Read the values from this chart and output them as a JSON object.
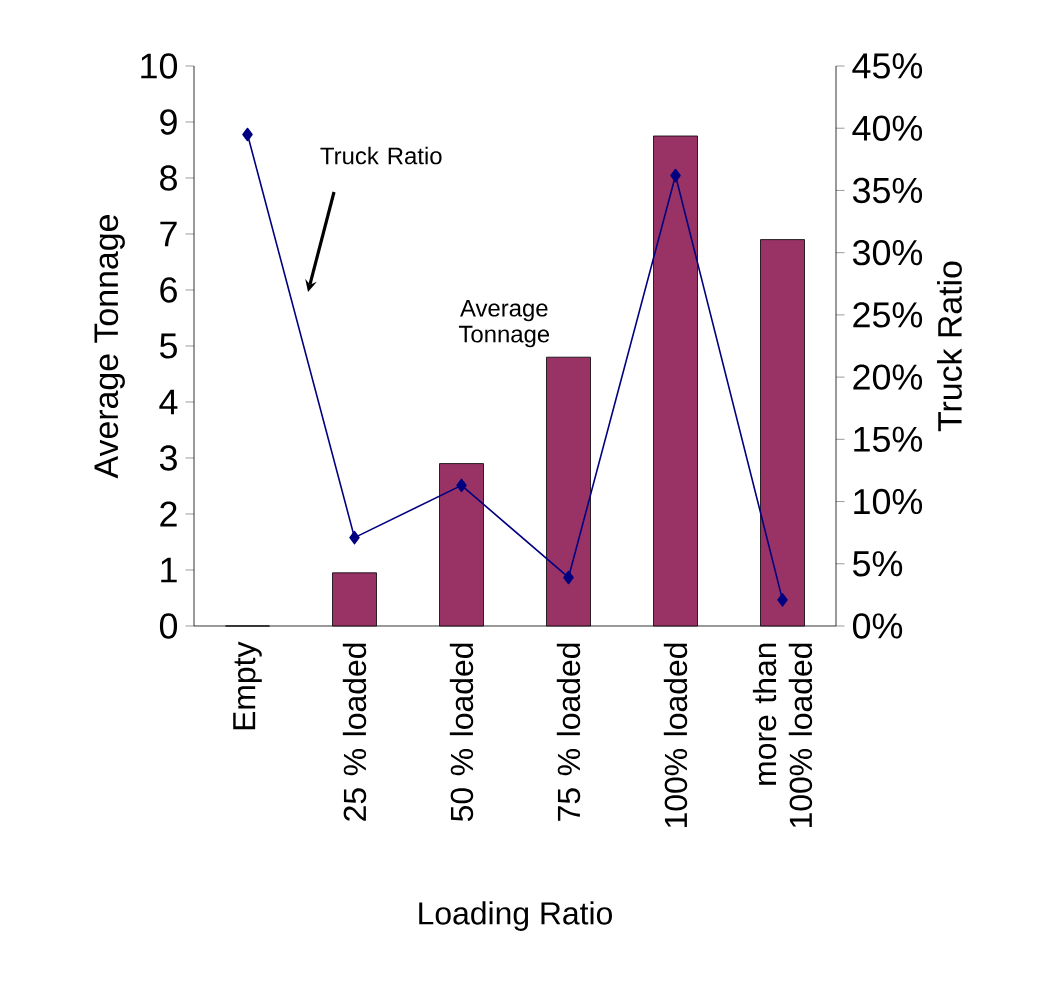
{
  "chart_data": {
    "type": "bar",
    "xlabel": "Loading Ratio",
    "ylabel": "Average Tonnage",
    "y2label": "Truck Ratio",
    "categories": [
      "Empty",
      "25 % loaded",
      "50 % loaded",
      "75 % loaded",
      "100% loaded",
      "more than 100% loaded"
    ],
    "series": [
      {
        "name": "Average Tonnage",
        "color": "#993366",
        "values": [
          0,
          0.95,
          2.9,
          4.8,
          8.75,
          6.9
        ]
      },
      {
        "name": "Truck Ratio",
        "type": "line",
        "axis": "y2",
        "color": "#000080",
        "marker": "diamond",
        "values": [
          39.5,
          7.1,
          11.3,
          3.9,
          36.2,
          2.1
        ]
      }
    ],
    "ylim": [
      0,
      10
    ],
    "yticks": [
      0,
      1,
      2,
      3,
      4,
      5,
      6,
      7,
      8,
      9,
      10
    ],
    "y2lim": [
      0,
      45
    ],
    "y2ticks": [
      {
        "value": 0,
        "label": "0%"
      },
      {
        "value": 5,
        "label": "5%"
      },
      {
        "value": 10,
        "label": "10%"
      },
      {
        "value": 15,
        "label": "15%"
      },
      {
        "value": 20,
        "label": "20%"
      },
      {
        "value": 25,
        "label": "25%"
      },
      {
        "value": 30,
        "label": "30%"
      },
      {
        "value": 35,
        "label": "35%"
      },
      {
        "value": 40,
        "label": "40%"
      },
      {
        "value": 45,
        "label": "45%"
      }
    ]
  }
}
